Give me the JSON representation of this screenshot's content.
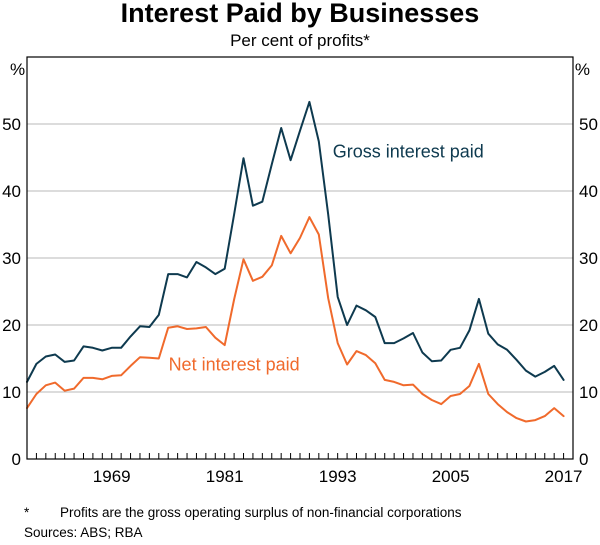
{
  "chart_data": {
    "type": "line",
    "title": "Interest Paid by Businesses",
    "subtitle": "Per cent of profits*",
    "unit_left": "%",
    "unit_right": "%",
    "xlim": [
      1960,
      2018
    ],
    "ylim": [
      0,
      60
    ],
    "y_ticks": [
      0,
      10,
      20,
      30,
      40,
      50
    ],
    "x_ticks": [
      1969,
      1981,
      1993,
      2005,
      2017
    ],
    "x_tick_labels": [
      "1969",
      "1981",
      "1993",
      "2005",
      "2017"
    ],
    "grid": "horizontal",
    "series": [
      {
        "name": "Gross interest paid",
        "color": "#0e3a4f",
        "x": [
          1960,
          1961,
          1962,
          1963,
          1964,
          1965,
          1966,
          1967,
          1968,
          1969,
          1970,
          1971,
          1972,
          1973,
          1974,
          1975,
          1976,
          1977,
          1978,
          1979,
          1980,
          1981,
          1982,
          1983,
          1984,
          1985,
          1986,
          1987,
          1988,
          1989,
          1990,
          1991,
          1992,
          1993,
          1994,
          1995,
          1996,
          1997,
          1998,
          1999,
          2000,
          2001,
          2002,
          2003,
          2004,
          2005,
          2006,
          2007,
          2008,
          2009,
          2010,
          2011,
          2012,
          2013,
          2014,
          2015,
          2016,
          2017
        ],
        "values": [
          11.5,
          14.2,
          15.3,
          15.6,
          14.5,
          14.7,
          16.8,
          16.6,
          16.2,
          16.6,
          16.6,
          18.3,
          19.8,
          19.7,
          21.5,
          27.6,
          27.6,
          27.1,
          29.4,
          28.6,
          27.6,
          28.4,
          36.5,
          44.9,
          37.8,
          38.4,
          44.0,
          49.4,
          44.6,
          49.0,
          53.3,
          47.4,
          36.5,
          24.2,
          20.0,
          22.9,
          22.2,
          21.2,
          17.3,
          17.3,
          18.0,
          18.8,
          15.9,
          14.6,
          14.7,
          16.3,
          16.6,
          19.2,
          23.9,
          18.7,
          17.1,
          16.3,
          14.8,
          13.2,
          12.3,
          13.0,
          13.9,
          11.8
        ]
      },
      {
        "name": "Net interest paid",
        "color": "#f06a2c",
        "x": [
          1960,
          1961,
          1962,
          1963,
          1964,
          1965,
          1966,
          1967,
          1968,
          1969,
          1970,
          1971,
          1972,
          1973,
          1974,
          1975,
          1976,
          1977,
          1978,
          1979,
          1980,
          1981,
          1982,
          1983,
          1984,
          1985,
          1986,
          1987,
          1988,
          1989,
          1990,
          1991,
          1992,
          1993,
          1994,
          1995,
          1996,
          1997,
          1998,
          1999,
          2000,
          2001,
          2002,
          2003,
          2004,
          2005,
          2006,
          2007,
          2008,
          2009,
          2010,
          2011,
          2012,
          2013,
          2014,
          2015,
          2016,
          2017
        ],
        "values": [
          7.6,
          9.7,
          11.0,
          11.4,
          10.2,
          10.5,
          12.1,
          12.1,
          11.9,
          12.4,
          12.5,
          13.9,
          15.2,
          15.1,
          15.0,
          19.6,
          19.8,
          19.4,
          19.5,
          19.7,
          18.1,
          17.0,
          23.8,
          29.8,
          26.6,
          27.2,
          28.9,
          33.3,
          30.7,
          33.0,
          36.1,
          33.5,
          24.0,
          17.3,
          14.1,
          16.1,
          15.5,
          14.3,
          11.8,
          11.5,
          11.0,
          11.1,
          9.7,
          8.8,
          8.2,
          9.4,
          9.7,
          10.9,
          14.2,
          9.7,
          8.2,
          7.0,
          6.1,
          5.6,
          5.8,
          6.4,
          7.6,
          6.4
        ]
      }
    ],
    "annotations": [
      {
        "text": "Gross interest paid",
        "x": 2000.5,
        "y": 45,
        "color": "#0e3a4f"
      },
      {
        "text": "Net interest paid",
        "x": 1982,
        "y": 13.2,
        "color": "#f06a2c"
      }
    ]
  },
  "footnote": {
    "marker": "*",
    "text": "Profits are the gross operating surplus of non-financial corporations"
  },
  "sources": "Sources: ABS; RBA"
}
